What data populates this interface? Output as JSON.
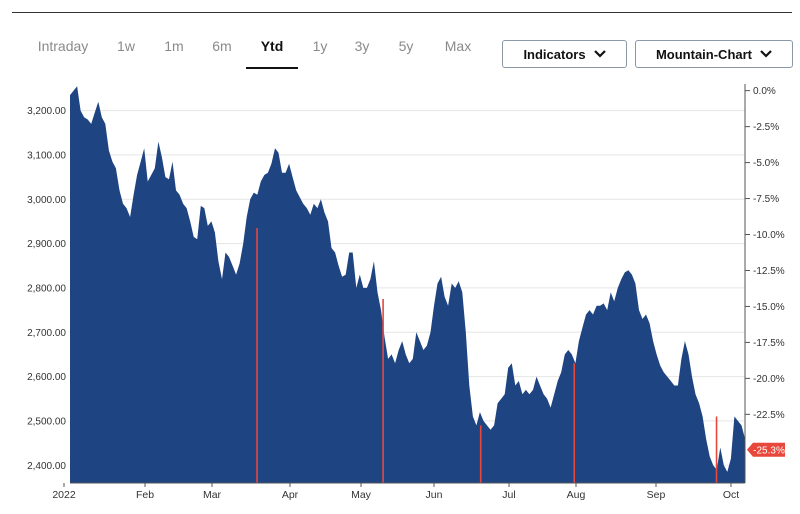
{
  "tabs": [
    "Intraday",
    "1w",
    "1m",
    "6m",
    "Ytd",
    "1y",
    "3y",
    "5y",
    "Max"
  ],
  "active_tab": "Ytd",
  "dropdowns": {
    "indicators": "Indicators",
    "chart_type": "Mountain-Chart"
  },
  "colors": {
    "area": "#1f4482",
    "event_line": "#e8473b",
    "badge": "#e8473b",
    "grid": "#e5e5e5"
  },
  "chart_data": {
    "type": "area",
    "title": "",
    "ylim": [
      2360,
      3260
    ],
    "y_ticks_left": [
      "2,400.00",
      "2,500.00",
      "2,600.00",
      "2,700.00",
      "2,800.00",
      "2,900.00",
      "3,000.00",
      "3,100.00",
      "3,200.00"
    ],
    "y_ticks_right": [
      "0.0%",
      "-2.5%",
      "-5.0%",
      "-7.5%",
      "-10.0%",
      "-12.5%",
      "-15.0%",
      "-17.5%",
      "-20.0%",
      "-22.5%"
    ],
    "x_ticks": [
      "2022",
      "Feb",
      "Mar",
      "Apr",
      "May",
      "Jun",
      "Jul",
      "Aug",
      "Sep",
      "Oct"
    ],
    "current_change": "-25.3%",
    "event_lines": [
      2935,
      2775,
      2490,
      2630,
      2510
    ],
    "series": [
      {
        "values": [
          3235,
          3245,
          3255,
          3200,
          3185,
          3180,
          3170,
          3195,
          3220,
          3185,
          3170,
          3110,
          3085,
          3070,
          3020,
          2990,
          2980,
          2960,
          3010,
          3055,
          3085,
          3115,
          3040,
          3055,
          3070,
          3130,
          3095,
          3050,
          3045,
          3085,
          3020,
          3010,
          2990,
          2980,
          2950,
          2915,
          2910,
          2985,
          2980,
          2940,
          2950,
          2925,
          2860,
          2820,
          2880,
          2870,
          2850,
          2830,
          2855,
          2900,
          2960,
          3000,
          3015,
          3010,
          3040,
          3055,
          3060,
          3080,
          3115,
          3105,
          3060,
          3060,
          3080,
          3050,
          3020,
          3005,
          2990,
          2980,
          2965,
          2990,
          2980,
          3000,
          2970,
          2950,
          2890,
          2880,
          2850,
          2825,
          2830,
          2880,
          2880,
          2800,
          2830,
          2800,
          2800,
          2820,
          2860,
          2790,
          2750,
          2690,
          2640,
          2650,
          2630,
          2660,
          2680,
          2650,
          2630,
          2640,
          2700,
          2680,
          2660,
          2670,
          2700,
          2760,
          2810,
          2825,
          2780,
          2760,
          2810,
          2800,
          2815,
          2790,
          2700,
          2580,
          2510,
          2490,
          2520,
          2500,
          2490,
          2480,
          2490,
          2540,
          2550,
          2560,
          2620,
          2630,
          2580,
          2590,
          2560,
          2570,
          2560,
          2570,
          2600,
          2580,
          2560,
          2550,
          2530,
          2560,
          2590,
          2610,
          2650,
          2660,
          2650,
          2630,
          2680,
          2710,
          2740,
          2750,
          2740,
          2760,
          2760,
          2765,
          2750,
          2790,
          2770,
          2800,
          2820,
          2835,
          2840,
          2830,
          2810,
          2750,
          2730,
          2740,
          2720,
          2680,
          2650,
          2625,
          2610,
          2600,
          2590,
          2580,
          2580,
          2640,
          2680,
          2650,
          2600,
          2560,
          2540,
          2510,
          2460,
          2420,
          2400,
          2390,
          2440,
          2400,
          2385,
          2415,
          2510,
          2500,
          2490,
          2460
        ]
      }
    ]
  }
}
